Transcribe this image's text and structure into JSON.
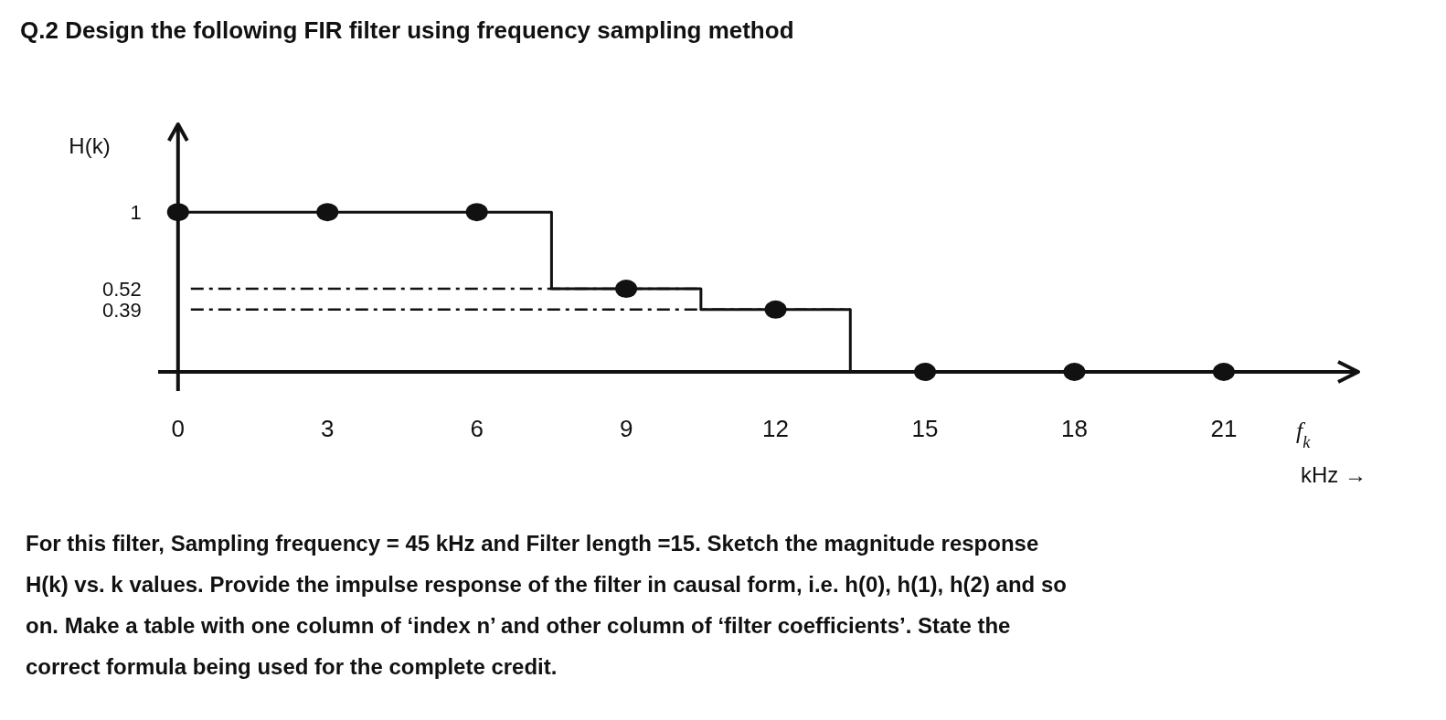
{
  "chart_data": {
    "type": "scatter",
    "title": "Q.2 Design the following FIR filter using frequency sampling method",
    "ylabel": "H(k)",
    "xlabel": "f$_{k}$",
    "annotations": [
      "kHz →",
      "For this filter, Sampling frequency = 45 kHz and Filter length =15. Sketch the magnitude response",
      "H(k) vs. k values. Provide the impulse response of the filter in causal form, i.e. h(0), h(1), h(2) and so",
      "on. Make a table with one column of ‘index n’ and other column of ‘filter coefficients’.  State the",
      "correct formula being used for the complete credit."
    ],
    "xlim": [
      -0.4,
      23.7
    ],
    "xticks": [
      0,
      3,
      6,
      9,
      12,
      15,
      18,
      21
    ],
    "ylim": [
      -0.12,
      1.55
    ],
    "yticks": [
      0.39,
      0.52,
      1
    ],
    "series": [
      {
        "type": "step",
        "color": "#111111",
        "x": [
          0,
          7.5,
          10.5,
          13.5
        ],
        "values": [
          1,
          0.52,
          0.39,
          0
        ]
      },
      {
        "color": "#111111",
        "marker": "circle",
        "x": [
          0,
          3,
          6,
          9,
          12,
          15,
          18,
          21
        ],
        "values": [
          1,
          1,
          1,
          0.52,
          0.39,
          0,
          0,
          0
        ]
      }
    ],
    "ref_lines": [
      {
        "axis": "y",
        "value": 0.52,
        "line_style": "dashed",
        "color": "#111111"
      },
      {
        "axis": "y",
        "value": 0.39,
        "line_style": "dashed",
        "color": "#111111"
      }
    ],
    "line_style": "solid"
  }
}
